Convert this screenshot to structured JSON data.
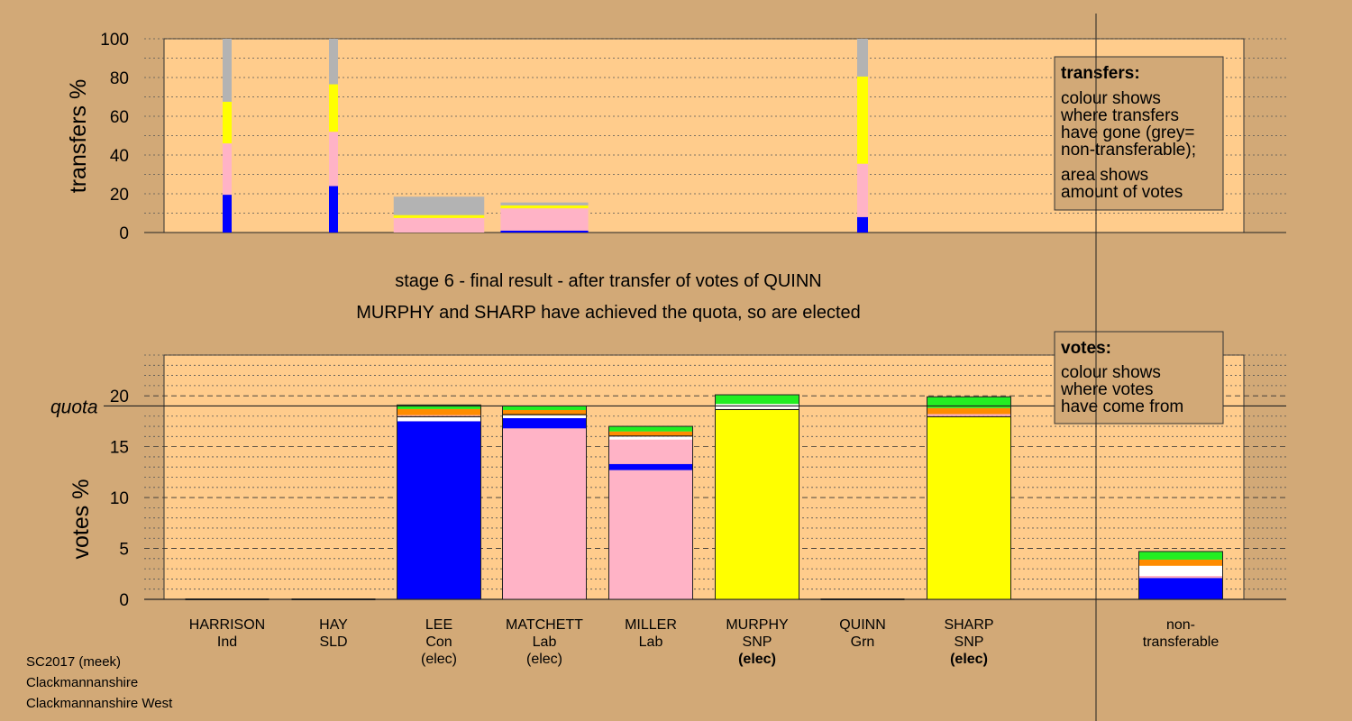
{
  "chart_data": [
    {
      "type": "bar",
      "panel": "transfers",
      "ylabel": "transfers %",
      "ylim": [
        0,
        100
      ],
      "yticks": [
        "0",
        "20",
        "40",
        "60",
        "80",
        "100"
      ],
      "grid": true,
      "legend_position": "top-right",
      "legend": {
        "title": "transfers:",
        "lines": [
          "colour shows",
          "where transfers",
          "have gone (grey=",
          "non-transferable);",
          "area shows",
          "amount of votes"
        ]
      },
      "segment_order": [
        "blue",
        "pink",
        "yellow",
        "grey"
      ],
      "columns": [
        {
          "candidate": "HARRISON",
          "width_pct": 2.5,
          "segments": [
            19.5,
            26.5,
            21.5,
            32.5
          ]
        },
        {
          "candidate": "HAY",
          "width_pct": 2.5,
          "segments": [
            24,
            28,
            24.5,
            23.5
          ]
        },
        {
          "candidate": "LEE",
          "width_pct": 15.0,
          "segments": [
            0,
            7.5,
            1.5,
            9.5
          ]
        },
        {
          "candidate": "MATCHETT",
          "width_pct": 14.5,
          "segments": [
            1,
            11.5,
            1.5,
            1.5
          ]
        },
        {
          "candidate": "QUINN",
          "width_pct": 3.0,
          "segments": [
            8,
            27.5,
            45,
            19.5
          ]
        }
      ]
    },
    {
      "type": "bar",
      "panel": "votes",
      "ylabel": "votes %",
      "ylim": [
        0,
        24
      ],
      "yticks": [
        "0",
        "5",
        "10",
        "15",
        "20"
      ],
      "quota": 19,
      "quota_label": "quota",
      "grid": true,
      "legend_position": "top-right",
      "legend": {
        "title": "votes:",
        "lines": [
          "colour shows",
          "where votes",
          "have come from"
        ]
      },
      "categories": [
        "HARRISON",
        "HAY",
        "LEE",
        "MATCHETT",
        "MILLER",
        "MURPHY",
        "QUINN",
        "SHARP",
        "non-transferable"
      ],
      "bars": [
        {
          "name": "HARRISON",
          "party": "Ind",
          "status": "",
          "segments": []
        },
        {
          "name": "HAY",
          "party": "SLD",
          "status": "",
          "segments": []
        },
        {
          "name": "LEE",
          "party": "Con",
          "status": "(elec)",
          "segments": [
            {
              "color": "#0000ff",
              "value": 17.5
            },
            {
              "color": "#ffffff",
              "value": 0.4
            },
            {
              "color": "#000000",
              "value": 0.1
            },
            {
              "color": "#ffb3c6",
              "value": 0.1
            },
            {
              "color": "#ff8c00",
              "value": 0.6
            },
            {
              "color": "#22ee22",
              "value": 0.4
            }
          ]
        },
        {
          "name": "MATCHETT",
          "party": "Lab",
          "status": "(elec)",
          "segments": [
            {
              "color": "#ffb3c6",
              "value": 16.8
            },
            {
              "color": "#0000ff",
              "value": 1.0
            },
            {
              "color": "#ffffff",
              "value": 0.3
            },
            {
              "color": "#000000",
              "value": 0.1
            },
            {
              "color": "#ff8c00",
              "value": 0.4
            },
            {
              "color": "#22ee22",
              "value": 0.4
            }
          ]
        },
        {
          "name": "MILLER",
          "party": "Lab",
          "status": "",
          "segments": [
            {
              "color": "#ffb3c6",
              "value": 12.7
            },
            {
              "color": "#0000ff",
              "value": 0.6
            },
            {
              "color": "#ffb3c6",
              "value": 2.4
            },
            {
              "color": "#ffffff",
              "value": 0.3
            },
            {
              "color": "#000000",
              "value": 0.1
            },
            {
              "color": "#ff8c00",
              "value": 0.4
            },
            {
              "color": "#22ee22",
              "value": 0.5
            }
          ]
        },
        {
          "name": "MURPHY",
          "party": "SNP",
          "status": "(elec)",
          "segments": [
            {
              "color": "#ffff00",
              "value": 18.6
            },
            {
              "color": "#000000",
              "value": 0.1
            },
            {
              "color": "#ffffff",
              "value": 0.5
            },
            {
              "color": "#22ee22",
              "value": 0.9
            }
          ]
        },
        {
          "name": "QUINN",
          "party": "Grn",
          "status": "",
          "segments": []
        },
        {
          "name": "SHARP",
          "party": "SNP",
          "status": "(elec)",
          "segments": [
            {
              "color": "#ffff00",
              "value": 17.9
            },
            {
              "color": "#000000",
              "value": 0.1
            },
            {
              "color": "#ffb3c6",
              "value": 0.2
            },
            {
              "color": "#ff8c00",
              "value": 0.6
            },
            {
              "color": "#22ee22",
              "value": 1.1
            }
          ]
        },
        {
          "name": "non-transferable",
          "party": "",
          "status": "",
          "segments": [
            {
              "color": "#0000ff",
              "value": 2.1
            },
            {
              "color": "#ffb3c6",
              "value": 0.2
            },
            {
              "color": "#ffffff",
              "value": 0.8
            },
            {
              "color": "#ffffff",
              "value": 0.2
            },
            {
              "color": "#ff8c00",
              "value": 0.6
            },
            {
              "color": "#22ee22",
              "value": 0.8
            }
          ]
        }
      ]
    }
  ],
  "titles": {
    "stage": "stage 6 - final result - after transfer of votes of QUINN",
    "elected": "MURPHY and SHARP have achieved the quota, so are elected"
  },
  "candidates": [
    {
      "name": "HARRISON",
      "party": "Ind",
      "status": "",
      "bold": false
    },
    {
      "name": "HAY",
      "party": "SLD",
      "status": "",
      "bold": false
    },
    {
      "name": "LEE",
      "party": "Con",
      "status": "(elec)",
      "bold": false
    },
    {
      "name": "MATCHETT",
      "party": "Lab",
      "status": "(elec)",
      "bold": false
    },
    {
      "name": "MILLER",
      "party": "Lab",
      "status": "",
      "bold": false
    },
    {
      "name": "MURPHY",
      "party": "SNP",
      "status": "(elec)",
      "bold": true
    },
    {
      "name": "QUINN",
      "party": "Grn",
      "status": "",
      "bold": false
    },
    {
      "name": "SHARP",
      "party": "SNP",
      "status": "(elec)",
      "bold": true
    },
    {
      "name": "non-",
      "party": "transferable",
      "status": "",
      "bold": false
    }
  ],
  "footer": {
    "election": "SC2017 (meek)",
    "council": "Clackmannanshire",
    "ward": "Clackmannanshire West"
  },
  "colors": {
    "background": "#d2a977",
    "plot_area": "#ffcc8c",
    "grey": "#b3b3b3",
    "blue": "#0000ff",
    "pink": "#ffb3c6",
    "yellow": "#ffff00",
    "orange": "#ff8c00",
    "green": "#22ee22"
  }
}
